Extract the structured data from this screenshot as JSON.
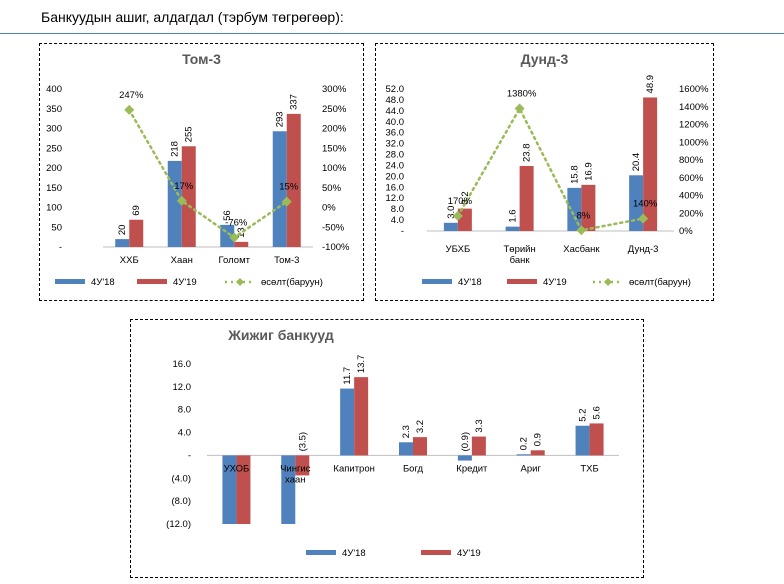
{
  "page": {
    "heading": "Банкуудын ашиг, алдагдал (тэрбум төгрөгөөр):"
  },
  "chart_data": [
    {
      "type": "bar",
      "title": "Том-3",
      "categories": [
        "ХХБ",
        "Хаан",
        "Голомт",
        "Том-3"
      ],
      "series": [
        {
          "name": "4У'18",
          "values": [
            20,
            218,
            56,
            293
          ],
          "color": "#4f81bd"
        },
        {
          "name": "4У'19",
          "values": [
            69,
            255,
            13,
            337
          ],
          "color": "#c0504d"
        }
      ],
      "line": {
        "name": "өсөлт(баруун)",
        "values": [
          247,
          17,
          -76,
          15
        ],
        "labels": [
          "247%",
          "17%",
          "-76%",
          "15%"
        ],
        "color": "#9bbb59",
        "axis": "right"
      },
      "ylim": [
        0,
        400
      ],
      "yticks": [
        "-",
        "50",
        "100",
        "150",
        "200",
        "250",
        "300",
        "350",
        "400"
      ],
      "y2lim": [
        -100,
        300
      ],
      "y2ticks": [
        "-100%",
        "-50%",
        "0%",
        "50%",
        "100%",
        "150%",
        "200%",
        "250%",
        "300%"
      ],
      "legend": "bottom"
    },
    {
      "type": "bar",
      "title": "Дунд-3",
      "categories": [
        "УБХБ",
        "Төрийн\nбанк",
        "Хасбанк",
        "Дунд-3"
      ],
      "series": [
        {
          "name": "4У'18",
          "values": [
            3.0,
            1.6,
            15.8,
            20.4
          ],
          "labels": [
            "3.0",
            "1.6",
            "15.8",
            "20.4"
          ],
          "color": "#4f81bd"
        },
        {
          "name": "4У'19",
          "values": [
            8.2,
            23.8,
            16.9,
            48.9
          ],
          "labels": [
            "8.2",
            "23.8",
            "16.9",
            "48.9"
          ],
          "color": "#c0504d"
        }
      ],
      "line": {
        "name": "өсөлт(баруун)",
        "values": [
          170,
          1380,
          8,
          140
        ],
        "labels": [
          "170%",
          "1380%",
          "8%",
          "140%"
        ],
        "color": "#9bbb59",
        "axis": "right"
      },
      "ylim": [
        0,
        52
      ],
      "yticks": [
        "-",
        "4.0",
        "8.0",
        "12.0",
        "16.0",
        "20.0",
        "24.0",
        "28.0",
        "32.0",
        "36.0",
        "40.0",
        "44.0",
        "48.0",
        "52.0"
      ],
      "y2lim": [
        0,
        1600
      ],
      "y2ticks": [
        "0%",
        "200%",
        "400%",
        "600%",
        "800%",
        "1000%",
        "1200%",
        "1400%",
        "1600%"
      ],
      "legend": "bottom"
    },
    {
      "type": "bar",
      "title": "Жижиг банкууд",
      "categories": [
        "УХОБ",
        "Чингис\nхаан",
        "Капитрон",
        "Богд",
        "Кредит",
        "Ариг",
        "ТХБ"
      ],
      "series": [
        {
          "name": "4У'18",
          "values": [
            -12,
            -12,
            11.7,
            2.3,
            -0.9,
            0.2,
            5.2
          ],
          "labels": [
            "",
            "",
            "11.7",
            "2.3",
            "(0.9)",
            "0.2",
            "5.2"
          ],
          "color": "#4f81bd"
        },
        {
          "name": "4У'19",
          "values": [
            -12,
            -3.5,
            13.7,
            3.2,
            3.3,
            0.9,
            5.6
          ],
          "labels": [
            "",
            "(3.5)",
            "13.7",
            "3.2",
            "3.3",
            "0.9",
            "5.6"
          ],
          "color": "#c0504d"
        }
      ],
      "ylim": [
        -12,
        16
      ],
      "yticks": [
        "(12.0)",
        "(8.0)",
        "(4.0)",
        "-",
        "4.0",
        "8.0",
        "12.0",
        "16.0"
      ],
      "legend": "bottom"
    }
  ]
}
